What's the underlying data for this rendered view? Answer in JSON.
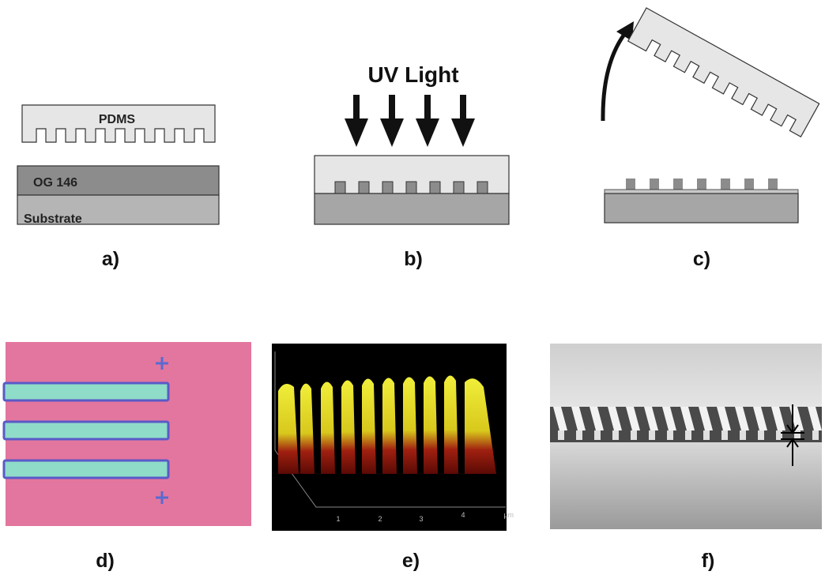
{
  "panels": {
    "a": {
      "label": "a)",
      "stamp": "PDMS",
      "layer": "OG 146",
      "substrate": "Substrate"
    },
    "b": {
      "label": "b)",
      "title": "UV Light"
    },
    "c": {
      "label": "c)"
    },
    "d": {
      "label": "d)"
    },
    "e": {
      "label": "e)",
      "axis_ticks": [
        "1",
        "2",
        "3",
        "4"
      ],
      "axis_unit": "µm"
    },
    "f": {
      "label": "f)"
    }
  }
}
